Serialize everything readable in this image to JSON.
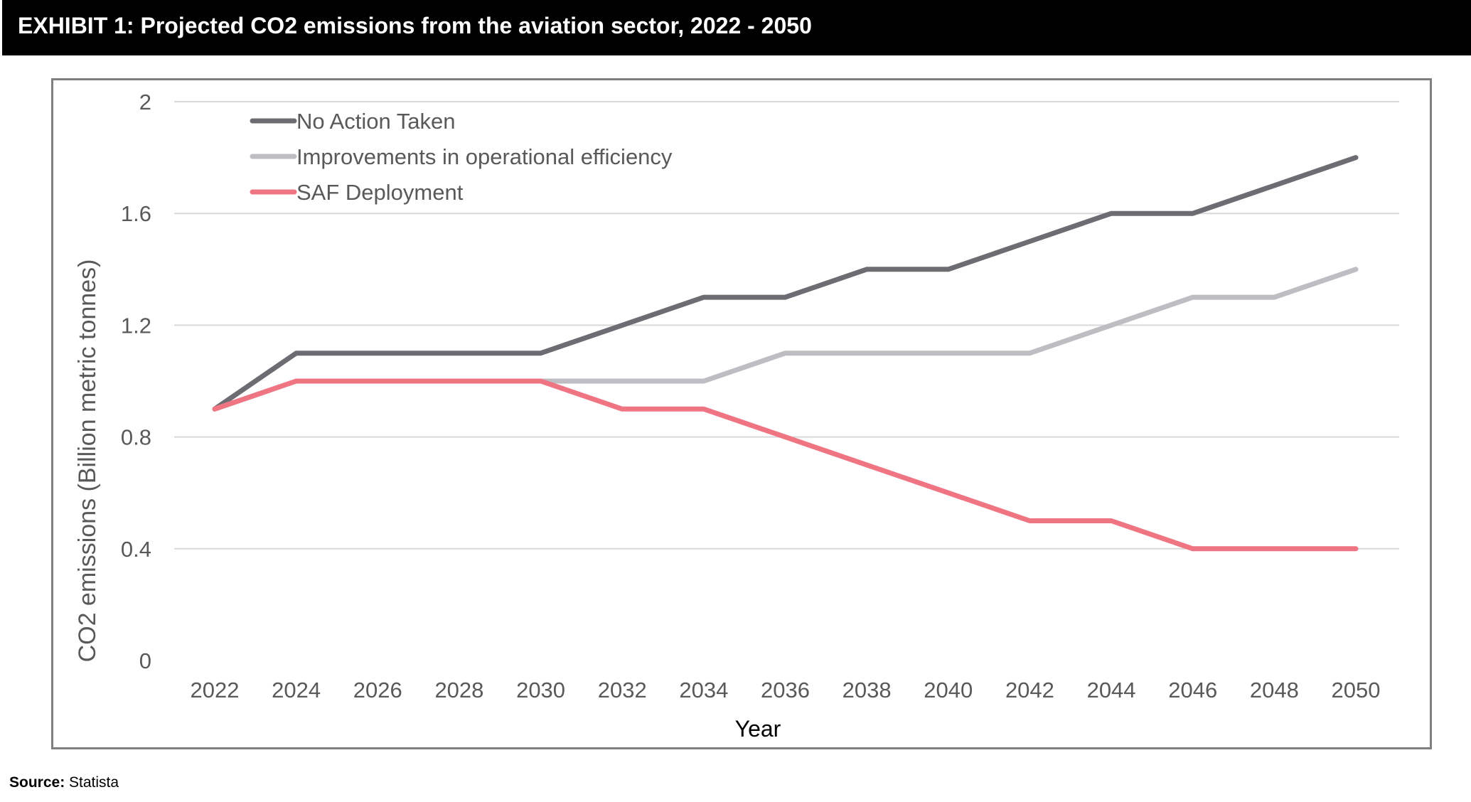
{
  "header": {
    "title": "EXHIBIT 1: Projected CO2 emissions from the aviation sector, 2022 - 2050"
  },
  "footer": {
    "source_label": "Source:",
    "source_value": "Statista"
  },
  "colors": {
    "header_bg": "#000000",
    "frame_border": "#7f7f7f",
    "grid": "#d9d9d9",
    "axis_text": "#595959"
  },
  "chart_data": {
    "type": "line",
    "title": "",
    "xlabel": "Year",
    "ylabel": "CO2 emissions (Billion metric tonnes)",
    "ylim": [
      0,
      2
    ],
    "yticks": [
      0,
      0.4,
      0.8,
      1.2,
      1.6,
      2
    ],
    "ytick_labels": [
      "0",
      "0.4",
      "0.8",
      "1.2",
      "1.6",
      "2"
    ],
    "grid": true,
    "legend_position": "top-left",
    "x": [
      "2022",
      "2024",
      "2026",
      "2028",
      "2030",
      "2032",
      "2034",
      "2036",
      "2038",
      "2040",
      "2042",
      "2044",
      "2046",
      "2048",
      "2050"
    ],
    "series": [
      {
        "name": "No Action Taken",
        "color": "#6d6c72",
        "values": [
          0.9,
          1.1,
          1.1,
          1.1,
          1.1,
          1.2,
          1.3,
          1.3,
          1.4,
          1.4,
          1.5,
          1.6,
          1.6,
          1.7,
          1.8
        ]
      },
      {
        "name": "Improvements in operational efficiency",
        "color": "#bdbdc2",
        "values": [
          0.9,
          1.0,
          1.0,
          1.0,
          1.0,
          1.0,
          1.0,
          1.1,
          1.1,
          1.1,
          1.1,
          1.2,
          1.3,
          1.3,
          1.4
        ]
      },
      {
        "name": "SAF Deployment",
        "color": "#ef7583",
        "values": [
          0.9,
          1.0,
          1.0,
          1.0,
          1.0,
          0.9,
          0.9,
          0.8,
          0.7,
          0.6,
          0.5,
          0.5,
          0.4,
          0.4,
          0.4
        ]
      }
    ]
  }
}
